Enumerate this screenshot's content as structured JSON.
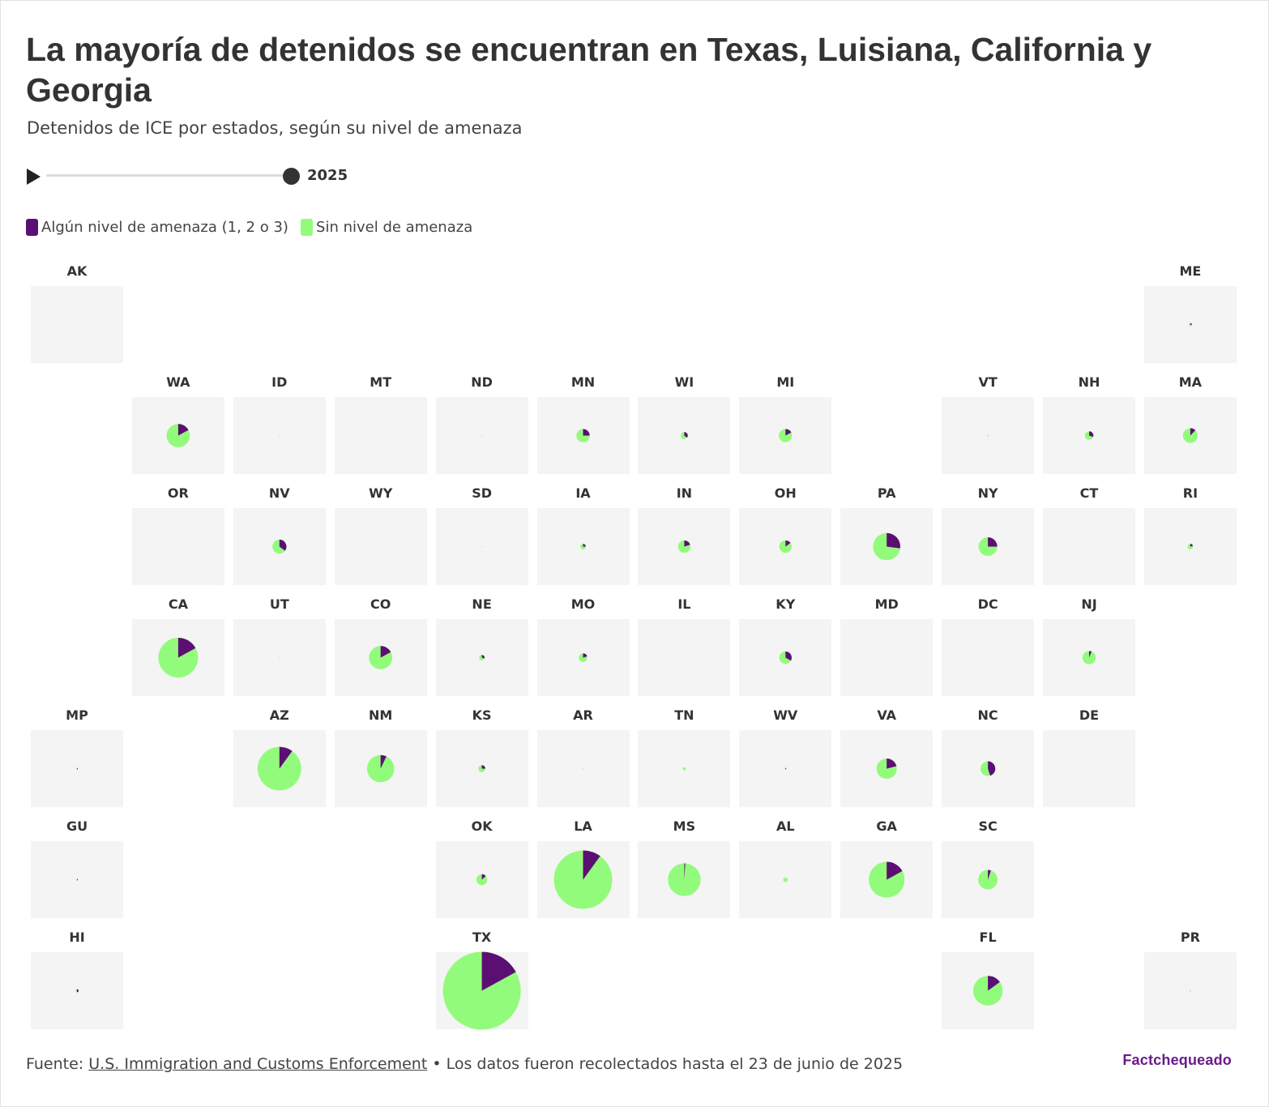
{
  "title": "La mayoría de detenidos se encuentran en Texas, Luisiana, California y Georgia",
  "subtitle": "Detenidos de ICE por estados, según su nivel de amenaza",
  "timeline": {
    "year": "2025",
    "progress": 1.0
  },
  "legend": [
    {
      "label": "Algún nivel de amenaza (1, 2 o 3)",
      "color": "#5c0f73"
    },
    {
      "label": "Sin nivel de amenaza",
      "color": "#93fb7c"
    }
  ],
  "footer": {
    "prefix": "Fuente: ",
    "source_link": "U.S. Immigration and Customs Enforcement",
    "note": " • Los datos fueron recolectados hasta el 23 de junio de 2025"
  },
  "logo": "Factchequeado",
  "chart_data": {
    "type": "pie",
    "title": "La mayoría de detenidos se encuentran en Texas, Luisiana, California y Georgia",
    "subtitle": "Detenidos de ICE por estados, según su nivel de amenaza",
    "series_names": [
      "Algún nivel de amenaza (1, 2 o 3)",
      "Sin nivel de amenaza"
    ],
    "colors": {
      "threat": "#5c0f73",
      "no_threat": "#93fb7c"
    },
    "layout": "tile grid map (row, column)",
    "states": [
      {
        "code": "AK",
        "row": 0,
        "col": 0,
        "relative_size": 0.0,
        "threat_share": 0.0
      },
      {
        "code": "ME",
        "row": 0,
        "col": 11,
        "relative_size": 0.04,
        "threat_share": 0.3
      },
      {
        "code": "WA",
        "row": 1,
        "col": 1,
        "relative_size": 0.3,
        "threat_share": 0.17
      },
      {
        "code": "ID",
        "row": 1,
        "col": 2,
        "relative_size": 0.01,
        "threat_share": 0.0
      },
      {
        "code": "MT",
        "row": 1,
        "col": 3,
        "relative_size": 0.0,
        "threat_share": 0.0
      },
      {
        "code": "ND",
        "row": 1,
        "col": 4,
        "relative_size": 0.01,
        "threat_share": 0.0
      },
      {
        "code": "MN",
        "row": 1,
        "col": 5,
        "relative_size": 0.17,
        "threat_share": 0.25
      },
      {
        "code": "WI",
        "row": 1,
        "col": 6,
        "relative_size": 0.09,
        "threat_share": 0.35
      },
      {
        "code": "MI",
        "row": 1,
        "col": 7,
        "relative_size": 0.17,
        "threat_share": 0.17
      },
      {
        "code": "VT",
        "row": 1,
        "col": 9,
        "relative_size": 0.02,
        "threat_share": 0.0
      },
      {
        "code": "NH",
        "row": 1,
        "col": 10,
        "relative_size": 0.11,
        "threat_share": 0.3
      },
      {
        "code": "MA",
        "row": 1,
        "col": 11,
        "relative_size": 0.19,
        "threat_share": 0.12
      },
      {
        "code": "OR",
        "row": 2,
        "col": 1,
        "relative_size": 0.0,
        "threat_share": 0.0
      },
      {
        "code": "NV",
        "row": 2,
        "col": 2,
        "relative_size": 0.18,
        "threat_share": 0.35
      },
      {
        "code": "WY",
        "row": 2,
        "col": 3,
        "relative_size": 0.0,
        "threat_share": 0.0
      },
      {
        "code": "SD",
        "row": 2,
        "col": 4,
        "relative_size": 0.01,
        "threat_share": 0.0
      },
      {
        "code": "IA",
        "row": 2,
        "col": 5,
        "relative_size": 0.07,
        "threat_share": 0.25
      },
      {
        "code": "IN",
        "row": 2,
        "col": 6,
        "relative_size": 0.16,
        "threat_share": 0.2
      },
      {
        "code": "OH",
        "row": 2,
        "col": 7,
        "relative_size": 0.16,
        "threat_share": 0.15
      },
      {
        "code": "PA",
        "row": 2,
        "col": 8,
        "relative_size": 0.35,
        "threat_share": 0.27
      },
      {
        "code": "NY",
        "row": 2,
        "col": 9,
        "relative_size": 0.24,
        "threat_share": 0.25
      },
      {
        "code": "CT",
        "row": 2,
        "col": 10,
        "relative_size": 0.0,
        "threat_share": 0.0
      },
      {
        "code": "RI",
        "row": 2,
        "col": 11,
        "relative_size": 0.07,
        "threat_share": 0.2
      },
      {
        "code": "CA",
        "row": 3,
        "col": 1,
        "relative_size": 0.51,
        "threat_share": 0.17
      },
      {
        "code": "UT",
        "row": 3,
        "col": 2,
        "relative_size": 0.01,
        "threat_share": 0.0
      },
      {
        "code": "CO",
        "row": 3,
        "col": 3,
        "relative_size": 0.3,
        "threat_share": 0.17
      },
      {
        "code": "NE",
        "row": 3,
        "col": 4,
        "relative_size": 0.07,
        "threat_share": 0.3
      },
      {
        "code": "MO",
        "row": 3,
        "col": 5,
        "relative_size": 0.11,
        "threat_share": 0.2
      },
      {
        "code": "IL",
        "row": 3,
        "col": 6,
        "relative_size": 0.0,
        "threat_share": 0.0
      },
      {
        "code": "KY",
        "row": 3,
        "col": 7,
        "relative_size": 0.16,
        "threat_share": 0.33
      },
      {
        "code": "MD",
        "row": 3,
        "col": 8,
        "relative_size": 0.0,
        "threat_share": 0.0
      },
      {
        "code": "DC",
        "row": 3,
        "col": 9,
        "relative_size": 0.0,
        "threat_share": 0.0
      },
      {
        "code": "NJ",
        "row": 3,
        "col": 10,
        "relative_size": 0.17,
        "threat_share": 0.06
      },
      {
        "code": "MP",
        "row": 4,
        "col": 0,
        "relative_size": 0.02,
        "threat_share": 0.5
      },
      {
        "code": "AZ",
        "row": 4,
        "col": 2,
        "relative_size": 0.56,
        "threat_share": 0.1
      },
      {
        "code": "NM",
        "row": 4,
        "col": 3,
        "relative_size": 0.35,
        "threat_share": 0.07
      },
      {
        "code": "KS",
        "row": 4,
        "col": 4,
        "relative_size": 0.09,
        "threat_share": 0.25
      },
      {
        "code": "AR",
        "row": 4,
        "col": 5,
        "relative_size": 0.01,
        "threat_share": 0.0
      },
      {
        "code": "TN",
        "row": 4,
        "col": 6,
        "relative_size": 0.04,
        "threat_share": 0.0
      },
      {
        "code": "WV",
        "row": 4,
        "col": 7,
        "relative_size": 0.02,
        "threat_share": 0.5
      },
      {
        "code": "VA",
        "row": 4,
        "col": 8,
        "relative_size": 0.26,
        "threat_share": 0.21
      },
      {
        "code": "NC",
        "row": 4,
        "col": 9,
        "relative_size": 0.19,
        "threat_share": 0.45
      },
      {
        "code": "DE",
        "row": 4,
        "col": 10,
        "relative_size": 0.0,
        "threat_share": 0.0
      },
      {
        "code": "GU",
        "row": 5,
        "col": 0,
        "relative_size": 0.02,
        "threat_share": 0.5
      },
      {
        "code": "OK",
        "row": 5,
        "col": 4,
        "relative_size": 0.14,
        "threat_share": 0.13
      },
      {
        "code": "LA",
        "row": 5,
        "col": 5,
        "relative_size": 0.75,
        "threat_share": 0.1
      },
      {
        "code": "MS",
        "row": 5,
        "col": 6,
        "relative_size": 0.42,
        "threat_share": 0.01
      },
      {
        "code": "AL",
        "row": 5,
        "col": 7,
        "relative_size": 0.06,
        "threat_share": 0.0
      },
      {
        "code": "GA",
        "row": 5,
        "col": 8,
        "relative_size": 0.46,
        "threat_share": 0.17
      },
      {
        "code": "SC",
        "row": 5,
        "col": 9,
        "relative_size": 0.25,
        "threat_share": 0.05
      },
      {
        "code": "HI",
        "row": 6,
        "col": 0,
        "relative_size": 0.04,
        "threat_share": 0.5
      },
      {
        "code": "TX",
        "row": 6,
        "col": 4,
        "relative_size": 1.0,
        "threat_share": 0.17
      },
      {
        "code": "FL",
        "row": 6,
        "col": 9,
        "relative_size": 0.38,
        "threat_share": 0.15
      },
      {
        "code": "PR",
        "row": 6,
        "col": 11,
        "relative_size": 0.02,
        "threat_share": 0.0
      }
    ]
  }
}
